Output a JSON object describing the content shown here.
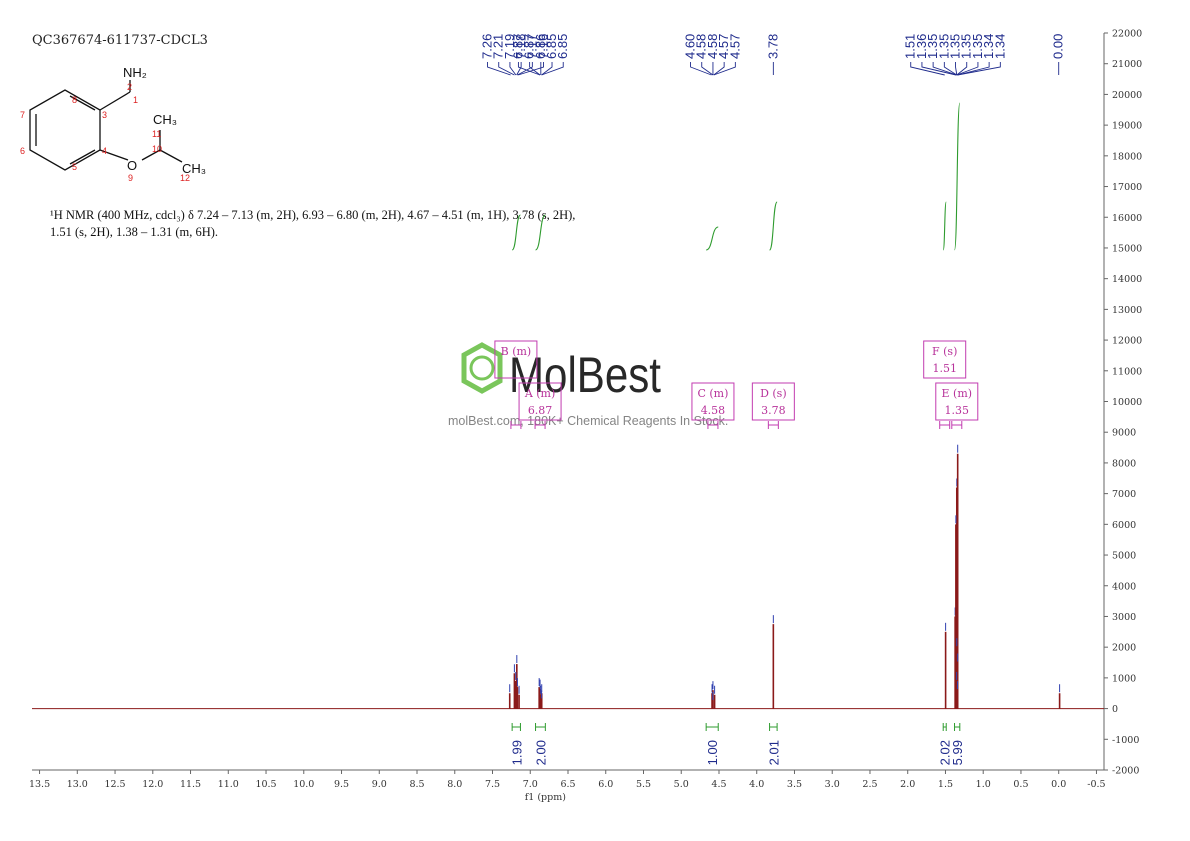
{
  "sample_id": "QC367674-611737-CDCL3",
  "nmr_description_line1": "¹H NMR (400 MHz, cdcl₃) δ 7.24 – 7.13 (m, 2H), 6.93 – 6.80 (m, 2H), 4.67 – 4.51 (m, 1H), 3.78 (s, 2H),",
  "nmr_description_line2": "1.51 (s, 2H), 1.38 – 1.31 (m, 6H).",
  "structure": {
    "atom_labels": [
      "NH₂",
      "O",
      "CH₃",
      "CH₃"
    ],
    "atom_numbers": [
      "1",
      "2",
      "3",
      "4",
      "5",
      "6",
      "7",
      "8",
      "9",
      "10",
      "11",
      "12"
    ]
  },
  "watermark": {
    "brand": "MolBest",
    "tagline": "molBest.com, 180K+ Chemical Reagents In Stock."
  },
  "colors": {
    "spectrum": "#8b1a1a",
    "integral": "#2e9b2e",
    "peak_label": "#1f2b8c",
    "multiplet_box": "#c23bb0",
    "watermark_green": "#6cc04a"
  },
  "chart_data": {
    "type": "line",
    "title": "",
    "xlabel": "f1 (ppm)",
    "ylabel": "",
    "xlim": [
      13.6,
      -0.6
    ],
    "ylim": [
      -2000,
      22000
    ],
    "x_ticks": [
      13.5,
      13.0,
      12.5,
      12.0,
      11.5,
      11.0,
      10.5,
      10.0,
      9.5,
      9.0,
      8.5,
      8.0,
      7.5,
      7.0,
      6.5,
      6.0,
      5.5,
      5.0,
      4.5,
      4.0,
      3.5,
      3.0,
      2.5,
      2.0,
      1.5,
      1.0,
      0.5,
      0.0,
      -0.5
    ],
    "x_tick_labels": [
      "13.5",
      "13.0",
      "12.5",
      "12.0",
      "11.5",
      "11.0",
      "10.5",
      "10.0",
      "9.5",
      "9.0",
      "8.5",
      "8.0",
      "7.5",
      "7.0",
      "6.5",
      "6.0",
      "5.5",
      "5.0",
      "4.5",
      "4.0",
      "3.5",
      "3.0",
      "2.5",
      "2.0",
      "1.5",
      "1.0",
      "0.5",
      "0.0",
      "-0.5"
    ],
    "y_ticks": [
      -2000,
      -1000,
      0,
      1000,
      2000,
      3000,
      4000,
      5000,
      6000,
      7000,
      8000,
      9000,
      10000,
      11000,
      12000,
      13000,
      14000,
      15000,
      16000,
      17000,
      18000,
      19000,
      20000,
      21000,
      22000
    ],
    "y_tick_labels": [
      "-2000",
      "-1000",
      "0",
      "1000",
      "2000",
      "3000",
      "4000",
      "5000",
      "6000",
      "7000",
      "8000",
      "9000",
      "10000",
      "11000",
      "12000",
      "13000",
      "14000",
      "15000",
      "16000",
      "17000",
      "18000",
      "19000",
      "20000",
      "21000",
      "22000"
    ],
    "peaks": [
      {
        "ppm": 7.26,
        "intensity": 500
      },
      {
        "ppm": 7.21,
        "intensity": 1150
      },
      {
        "ppm": 7.19,
        "intensity": 1450
      },
      {
        "ppm": 7.18,
        "intensity": 900
      },
      {
        "ppm": 7.17,
        "intensity": 700
      },
      {
        "ppm": 7.16,
        "intensity": 450
      },
      {
        "ppm": 6.87,
        "intensity": 700
      },
      {
        "ppm": 6.87,
        "intensity": 650
      },
      {
        "ppm": 6.86,
        "intensity": 500
      },
      {
        "ppm": 6.85,
        "intensity": 450
      },
      {
        "ppm": 6.85,
        "intensity": 300
      },
      {
        "ppm": 4.6,
        "intensity": 250
      },
      {
        "ppm": 4.58,
        "intensity": 500
      },
      {
        "ppm": 4.58,
        "intensity": 600
      },
      {
        "ppm": 4.57,
        "intensity": 450
      },
      {
        "ppm": 4.57,
        "intensity": 250
      },
      {
        "ppm": 3.78,
        "intensity": 2750
      },
      {
        "ppm": 1.51,
        "intensity": 2500
      },
      {
        "ppm": 1.36,
        "intensity": 3000
      },
      {
        "ppm": 1.35,
        "intensity": 7200
      },
      {
        "ppm": 1.35,
        "intensity": 8300
      },
      {
        "ppm": 1.35,
        "intensity": 6000
      },
      {
        "ppm": 1.35,
        "intensity": 2000
      },
      {
        "ppm": 1.35,
        "intensity": 1500
      },
      {
        "ppm": 1.34,
        "intensity": 900
      },
      {
        "ppm": 1.34,
        "intensity": 600
      },
      {
        "ppm": 0.0,
        "intensity": 500
      }
    ],
    "peak_labels": [
      {
        "label": "7.26",
        "ppm": 7.26
      },
      {
        "label": "7.21",
        "ppm": 7.21
      },
      {
        "label": "7.19",
        "ppm": 7.19
      },
      {
        "label": "7.18",
        "ppm": 7.18
      },
      {
        "label": "7.17",
        "ppm": 7.17
      },
      {
        "label": "7.16",
        "ppm": 7.16
      },
      {
        "label": "6.87",
        "ppm": 6.87
      },
      {
        "label": "6.87",
        "ppm": 6.87
      },
      {
        "label": "6.86",
        "ppm": 6.86
      },
      {
        "label": "6.85",
        "ppm": 6.85
      },
      {
        "label": "6.85",
        "ppm": 6.85
      },
      {
        "label": "4.60",
        "ppm": 4.6
      },
      {
        "label": "4.58",
        "ppm": 4.58
      },
      {
        "label": "4.58",
        "ppm": 4.58
      },
      {
        "label": "4.57",
        "ppm": 4.57
      },
      {
        "label": "4.57",
        "ppm": 4.57
      },
      {
        "label": "3.78",
        "ppm": 3.78
      },
      {
        "label": "1.51",
        "ppm": 1.51
      },
      {
        "label": "1.36",
        "ppm": 1.36
      },
      {
        "label": "1.35",
        "ppm": 1.35
      },
      {
        "label": "1.35",
        "ppm": 1.35
      },
      {
        "label": "1.35",
        "ppm": 1.35
      },
      {
        "label": "1.35",
        "ppm": 1.35
      },
      {
        "label": "1.35",
        "ppm": 1.35
      },
      {
        "label": "1.34",
        "ppm": 1.34
      },
      {
        "label": "1.34",
        "ppm": 1.34
      },
      {
        "label": "0.00",
        "ppm": 0.0
      }
    ],
    "integrals": [
      {
        "from": 7.24,
        "to": 7.13,
        "value": "1.99"
      },
      {
        "from": 6.93,
        "to": 6.8,
        "value": "2.00"
      },
      {
        "from": 4.67,
        "to": 4.51,
        "value": "1.00"
      },
      {
        "from": 3.83,
        "to": 3.73,
        "value": "2.01"
      },
      {
        "from": 1.53,
        "to": 1.49,
        "value": "2.02"
      },
      {
        "from": 1.38,
        "to": 1.31,
        "value": "5.99"
      }
    ],
    "multiplets": [
      {
        "label": "B (m)",
        "shift": "",
        "ppm": 7.19
      },
      {
        "label": "A (m)",
        "shift": "6.87",
        "ppm": 6.87
      },
      {
        "label": "C (m)",
        "shift": "4.58",
        "ppm": 4.58
      },
      {
        "label": "D (s)",
        "shift": "3.78",
        "ppm": 3.78
      },
      {
        "label": "F (s)",
        "shift": "1.51",
        "ppm": 1.51
      },
      {
        "label": "E (m)",
        "shift": "1.35",
        "ppm": 1.35
      }
    ]
  }
}
